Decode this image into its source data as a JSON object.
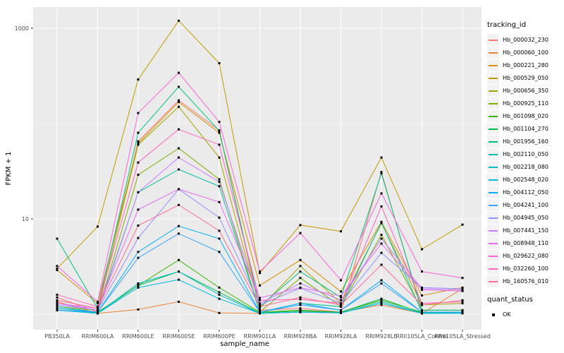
{
  "chart_data": {
    "type": "line",
    "title": "",
    "xlabel": "sample_name",
    "ylabel": "FPKM + 1",
    "y_scale": "log10",
    "grid": true,
    "panel_bg": "#EBEBEB",
    "gridline_color": "#FFFFFF",
    "tick_label_color": "#4D4D4D",
    "point_color": "#000000",
    "y_ticks": [
      {
        "label": "1000",
        "value": 1000
      },
      {
        "label": "10",
        "value": 10
      }
    ],
    "y_minor_gridlines": [
      100,
      1
    ],
    "ylim": [
      0.7,
      1670
    ],
    "legend_title": "tracking_id",
    "legend_position": "right",
    "quant_legend": {
      "title": "quant_status",
      "items": [
        {
          "label": "OK",
          "marker": "black-square"
        }
      ]
    },
    "categories": [
      "PB350LA",
      "RRIM600LA",
      "RRIM600LE",
      "RRIM600SE",
      "RRIM600PE",
      "RRIM901LA",
      "RRIM928BA",
      "RRIM928LA",
      "RRIM928LE",
      "RRII105LA_Control",
      "RRII105LA_Stressed"
    ],
    "series": [
      {
        "name": "Hb_000032_230",
        "color": "#F8766D",
        "values": [
          1.5,
          1.05,
          65,
          175,
          85,
          1.1,
          1.15,
          1.05,
          31,
          1.05,
          1.05
        ]
      },
      {
        "name": "Hb_000060_100",
        "color": "#EB8335",
        "values": [
          1.35,
          1.02,
          1.12,
          1.35,
          1.03,
          1.02,
          1.05,
          1.05,
          1.25,
          1.02,
          1.85
        ]
      },
      {
        "name": "Hb_000221_280",
        "color": "#D89000",
        "values": [
          2.9,
          1.3,
          62,
          168,
          80,
          2.0,
          3.7,
          1.73,
          9.3,
          1.57,
          1.9
        ]
      },
      {
        "name": "Hb_000529_050",
        "color": "#C09B00",
        "values": [
          3.0,
          8.3,
          290,
          1200,
          430,
          2.7,
          8.6,
          7.4,
          44,
          4.8,
          8.7
        ]
      },
      {
        "name": "Hb_000656_350",
        "color": "#A3A500",
        "values": [
          1.2,
          1.1,
          60,
          150,
          44,
          1.15,
          3.2,
          1.3,
          9.0,
          1.25,
          1.3
        ]
      },
      {
        "name": "Hb_000925_110",
        "color": "#7CAE00",
        "values": [
          1.15,
          1.05,
          29,
          55,
          26,
          1.05,
          2.4,
          1.2,
          6.8,
          1.1,
          1.1
        ]
      },
      {
        "name": "Hb_001098_020",
        "color": "#39B600",
        "values": [
          1.1,
          1.05,
          2.0,
          3.7,
          1.9,
          1.05,
          1.1,
          1.05,
          1.4,
          1.05,
          1.05
        ]
      },
      {
        "name": "Hb_001104_270",
        "color": "#00BB4E",
        "values": [
          1.1,
          1.03,
          2.0,
          2.8,
          1.7,
          1.03,
          1.08,
          1.05,
          1.45,
          1.03,
          1.05
        ]
      },
      {
        "name": "Hb_001956_160",
        "color": "#00BF7D",
        "values": [
          6.2,
          1.15,
          80,
          243,
          84,
          1.2,
          2.8,
          1.5,
          30,
          1.1,
          1.1
        ]
      },
      {
        "name": "Hb_002110_050",
        "color": "#00C1A3",
        "values": [
          1.2,
          1.05,
          19,
          33,
          22,
          1.05,
          1.3,
          1.2,
          9.2,
          1.05,
          1.05
        ]
      },
      {
        "name": "Hb_002218_080",
        "color": "#00BFC4",
        "values": [
          1.1,
          1.02,
          2.1,
          2.8,
          1.6,
          1.02,
          1.05,
          1.03,
          1.35,
          1.02,
          1.03
        ]
      },
      {
        "name": "Hb_002548_020",
        "color": "#00BAE0",
        "values": [
          1.1,
          1.02,
          1.9,
          2.3,
          1.45,
          1.02,
          1.05,
          1.03,
          1.3,
          1.02,
          1.02
        ]
      },
      {
        "name": "Hb_004112_050",
        "color": "#00B0F6",
        "values": [
          1.15,
          1.05,
          4.5,
          8.4,
          6.2,
          1.05,
          1.3,
          1.1,
          2.27,
          1.05,
          1.05
        ]
      },
      {
        "name": "Hb_004241_100",
        "color": "#35A2FF",
        "values": [
          1.1,
          1.05,
          3.9,
          7.0,
          4.5,
          1.05,
          1.25,
          1.1,
          2.1,
          1.05,
          1.05
        ]
      },
      {
        "name": "Hb_004945_050",
        "color": "#9590FF",
        "values": [
          1.25,
          1.1,
          6.3,
          20.5,
          10.3,
          1.25,
          1.88,
          1.3,
          4.4,
          1.9,
          1.85
        ]
      },
      {
        "name": "Hb_007441_150",
        "color": "#C77CFF",
        "values": [
          1.3,
          1.1,
          19,
          44,
          24.5,
          1.3,
          2.1,
          1.4,
          6.2,
          1.85,
          1.8
        ]
      },
      {
        "name": "Hb_008948_110",
        "color": "#E76BF3",
        "values": [
          1.3,
          1.15,
          12.5,
          20.5,
          15,
          1.48,
          1.9,
          1.55,
          5.5,
          1.8,
          1.75
        ]
      },
      {
        "name": "Hb_029622_080",
        "color": "#FA62DB",
        "values": [
          3.2,
          1.35,
          129,
          341,
          104,
          2.8,
          7.1,
          2.27,
          18.5,
          2.8,
          2.4
        ]
      },
      {
        "name": "Hb_032260_100",
        "color": "#FF62BC",
        "values": [
          1.6,
          1.2,
          39,
          87,
          60,
          1.4,
          1.43,
          1.3,
          13.5,
          1.3,
          1.35
        ]
      },
      {
        "name": "Hb_160576_010",
        "color": "#FF6A98",
        "values": [
          1.4,
          1.15,
          8.5,
          14,
          7.5,
          1.2,
          1.5,
          1.25,
          3.3,
          1.25,
          1.4
        ]
      }
    ]
  }
}
